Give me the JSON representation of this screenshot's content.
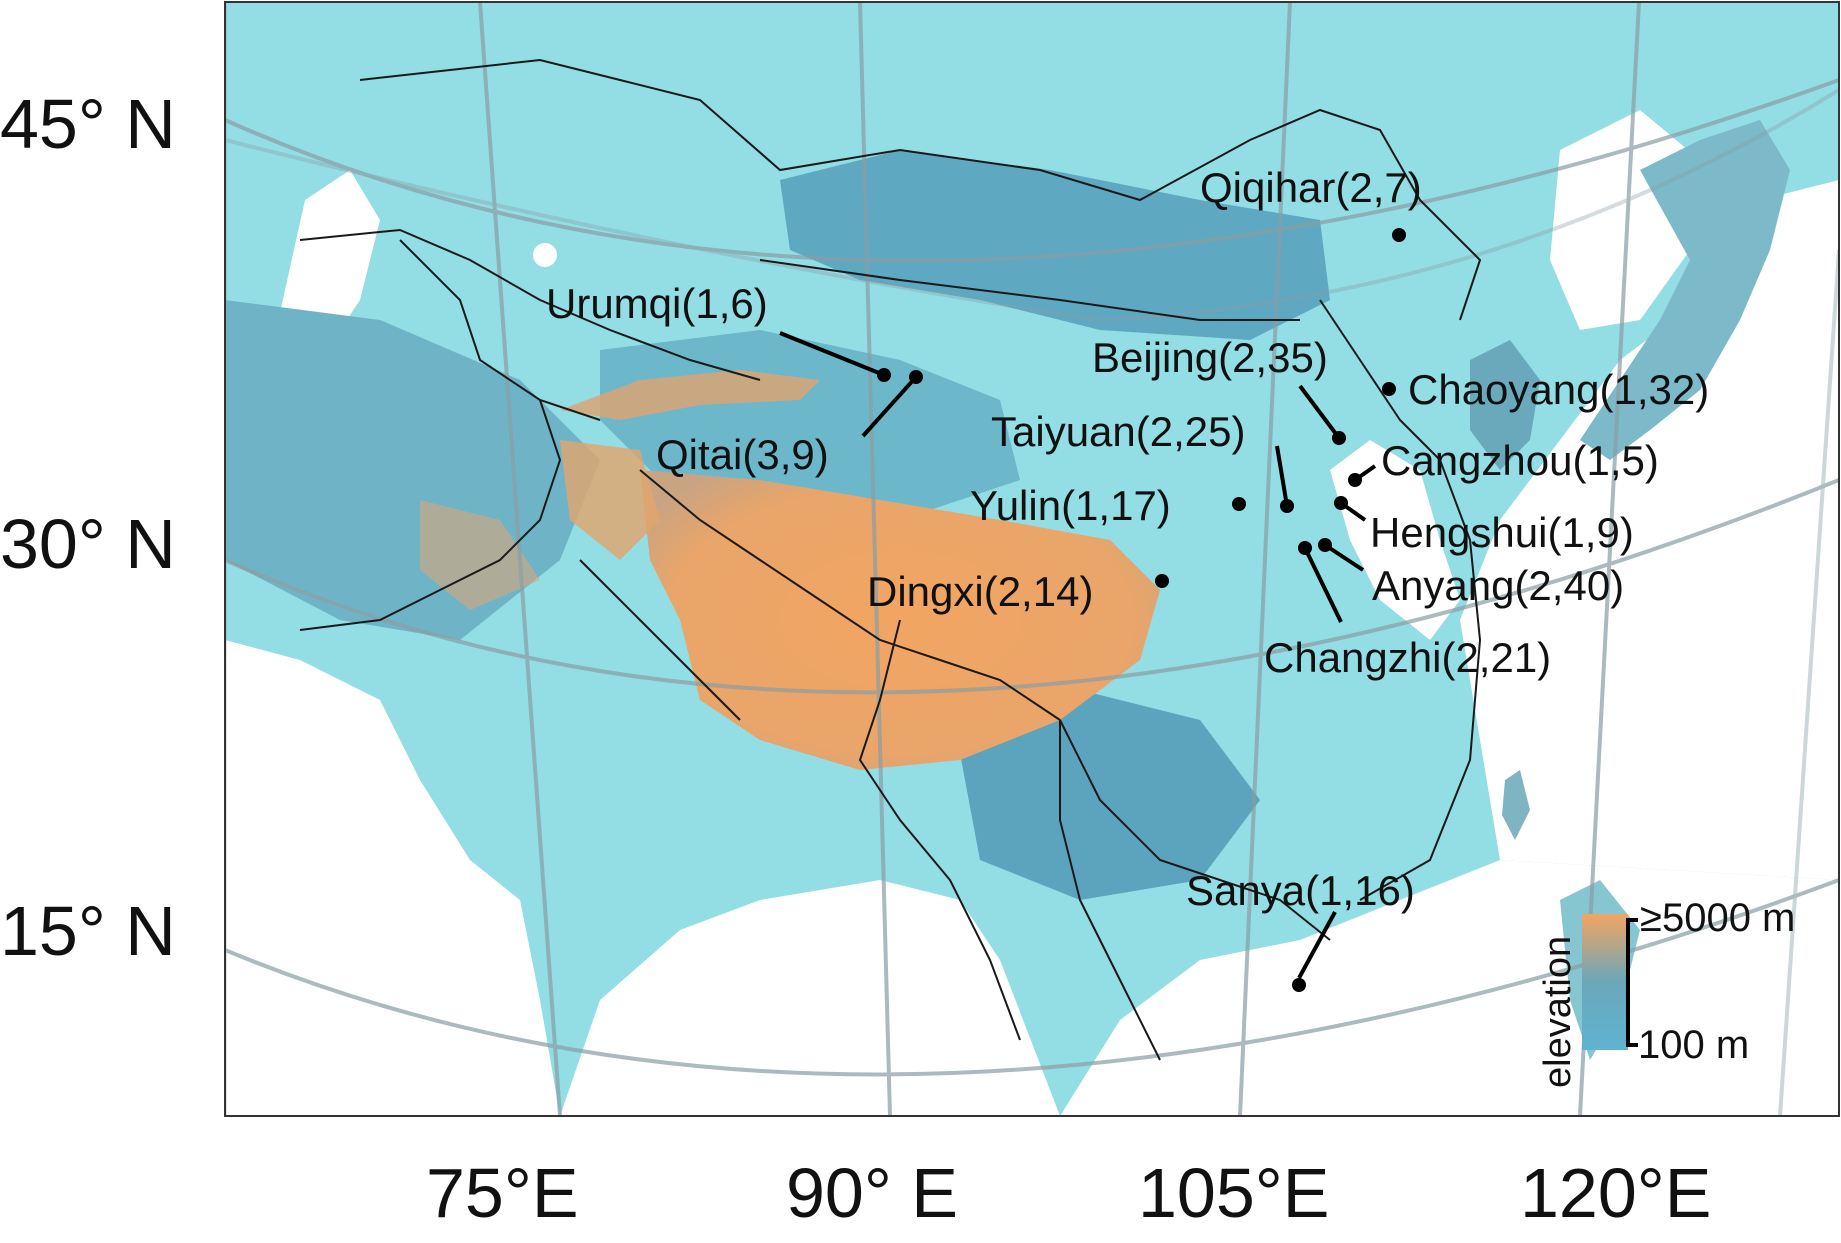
{
  "axes": {
    "lat_labels": [
      "45° N",
      "30° N",
      "15° N"
    ],
    "lon_labels": [
      "75°E",
      "90° E",
      "105°E",
      "120°E"
    ]
  },
  "sites": [
    {
      "name": "Urumqi",
      "label": "Urumqi(1,6)"
    },
    {
      "name": "Qitai",
      "label": "Qitai(3,9)"
    },
    {
      "name": "Qiqihar",
      "label": "Qiqihar(2,7)"
    },
    {
      "name": "Beijing",
      "label": "Beijing(2,35)"
    },
    {
      "name": "Chaoyang",
      "label": "Chaoyang(1,32)"
    },
    {
      "name": "Taiyuan",
      "label": "Taiyuan(2,25)"
    },
    {
      "name": "Cangzhou",
      "label": "Cangzhou(1,5)"
    },
    {
      "name": "Yulin",
      "label": "Yulin(1,17)"
    },
    {
      "name": "Hengshui",
      "label": "Hengshui(1,9)"
    },
    {
      "name": "Anyang",
      "label": "Anyang(2,40)"
    },
    {
      "name": "Dingxi",
      "label": "Dingxi(2,14)"
    },
    {
      "name": "Changzhi",
      "label": "Changzhi(2,21)"
    },
    {
      "name": "Sanya",
      "label": "Sanya(1,16)"
    }
  ],
  "legend": {
    "title": "elevation",
    "max_label": "≥5000 m",
    "min_label": "100 m"
  },
  "colors": {
    "elevation_low": "#5fb3d3",
    "elevation_mid": "#4f9ebf",
    "elevation_high": "#f2a562",
    "lowland": "#93dde4",
    "water": "#ffffff",
    "graticule": "#8a9ea4",
    "border": "#1a1a1a"
  }
}
